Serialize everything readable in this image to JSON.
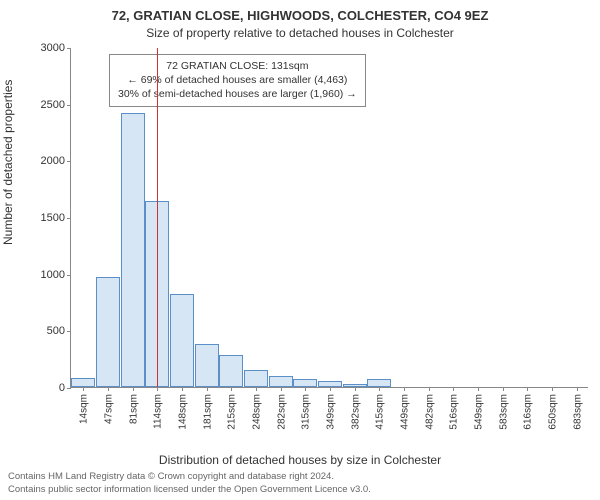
{
  "title": "72, GRATIAN CLOSE, HIGHWOODS, COLCHESTER, CO4 9EZ",
  "subtitle": "Size of property relative to detached houses in Colchester",
  "y_axis_label": "Number of detached properties",
  "x_axis_label": "Distribution of detached houses by size in Colchester",
  "chart": {
    "type": "histogram",
    "ylim": [
      0,
      3000
    ],
    "ytick_step": 500,
    "yticks": [
      0,
      500,
      1000,
      1500,
      2000,
      2500,
      3000
    ],
    "xtick_labels": [
      "14sqm",
      "47sqm",
      "81sqm",
      "114sqm",
      "148sqm",
      "181sqm",
      "215sqm",
      "248sqm",
      "282sqm",
      "315sqm",
      "349sqm",
      "382sqm",
      "415sqm",
      "449sqm",
      "482sqm",
      "516sqm",
      "549sqm",
      "583sqm",
      "616sqm",
      "650sqm",
      "683sqm"
    ],
    "values": [
      80,
      970,
      2420,
      1640,
      820,
      380,
      280,
      150,
      100,
      70,
      50,
      30,
      70,
      0,
      0,
      0,
      0,
      0,
      0,
      0,
      0
    ],
    "bar_color": "#d7e6f5",
    "bar_border_color": "#5b8fc7",
    "axis_color": "#888888",
    "background_color": "#ffffff",
    "marker_value_x_index": 3.5,
    "marker_color": "#cc3333"
  },
  "callout": {
    "line1": "72 GRATIAN CLOSE: 131sqm",
    "line2": "← 69% of detached houses are smaller (4,463)",
    "line3": "30% of semi-detached houses are larger (1,960) →"
  },
  "footer": {
    "line1": "Contains HM Land Registry data © Crown copyright and database right 2024.",
    "line2": "Contains public sector information licensed under the Open Government Licence v3.0."
  },
  "fonts": {
    "title_size_pt": 13,
    "subtitle_size_pt": 12,
    "axis_label_size_pt": 12,
    "tick_size_pt": 11,
    "callout_size_pt": 10.5,
    "footer_size_pt": 9.5
  }
}
